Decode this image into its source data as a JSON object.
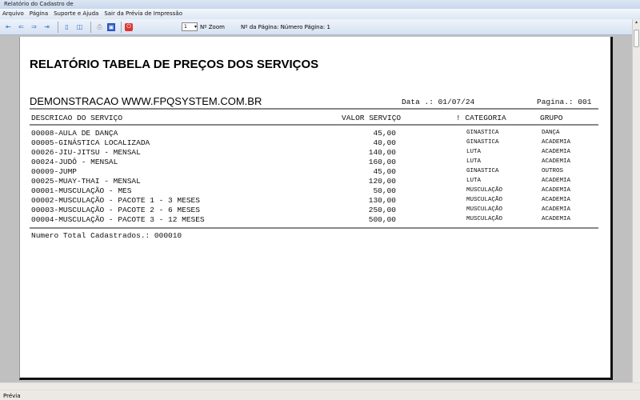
{
  "window": {
    "title": "Relatório do Cadastro de"
  },
  "menu": [
    "Arquivo",
    "Página",
    "Suporte e Ajuda",
    "Sair da Prévia de Impressão"
  ],
  "toolbar": {
    "zoom_value": "1",
    "zoom_label": "Nº Zoom",
    "page_label": "Nº da Página: Número Página: 1"
  },
  "report": {
    "title": "RELATÓRIO TABELA DE PREÇOS DOS SERVIÇOS",
    "company": "DEMONSTRACAO WWW.FPQSYSTEM.COM.BR",
    "date": "Data .: 01/07/24",
    "page": "Pagina.: 001",
    "headers": {
      "desc": "DESCRICAO DO SERVIÇO",
      "valor": "VALOR SERVIÇO",
      "categoria": "! CATEGORIA",
      "grupo": "GRUPO"
    },
    "rows": [
      {
        "desc": "00008-AULA DE DANÇA",
        "valor": "45,00",
        "categoria": "GINASTICA",
        "grupo": "DANÇA"
      },
      {
        "desc": "00005-GINÁSTICA LOCALIZADA",
        "valor": "40,00",
        "categoria": "GINASTICA",
        "grupo": "ACADEMIA"
      },
      {
        "desc": "00026-JIU-JITSU - MENSAL",
        "valor": "140,00",
        "categoria": "LUTA",
        "grupo": "ACADEMIA"
      },
      {
        "desc": "00024-JUDÔ - MENSAL",
        "valor": "160,00",
        "categoria": "LUTA",
        "grupo": "ACADEMIA"
      },
      {
        "desc": "00009-JUMP",
        "valor": "45,00",
        "categoria": "GINASTICA",
        "grupo": "OUTROS"
      },
      {
        "desc": "00025-MUAY-THAI - MENSAL",
        "valor": "120,00",
        "categoria": "LUTA",
        "grupo": "ACADEMIA"
      },
      {
        "desc": "00001-MUSCULAÇÃO - MES",
        "valor": "50,00",
        "categoria": "MUSCULAÇÃO",
        "grupo": "ACADEMIA"
      },
      {
        "desc": "00002-MUSCULAÇÃO - PACOTE 1 - 3 MESES",
        "valor": "130,00",
        "categoria": "MUSCULAÇÃO",
        "grupo": "ACADEMIA"
      },
      {
        "desc": "00003-MUSCULAÇÃO - PACOTE 2 - 6 MESES",
        "valor": "250,00",
        "categoria": "MUSCULAÇÃO",
        "grupo": "ACADEMIA"
      },
      {
        "desc": "00004-MUSCULAÇÃO - PACOTE 3 - 12 MESES",
        "valor": "500,00",
        "categoria": "MUSCULAÇÃO",
        "grupo": "ACADEMIA"
      }
    ],
    "total": "Numero Total Cadastrados.: 000010"
  },
  "status": {
    "text": "Prévia"
  }
}
